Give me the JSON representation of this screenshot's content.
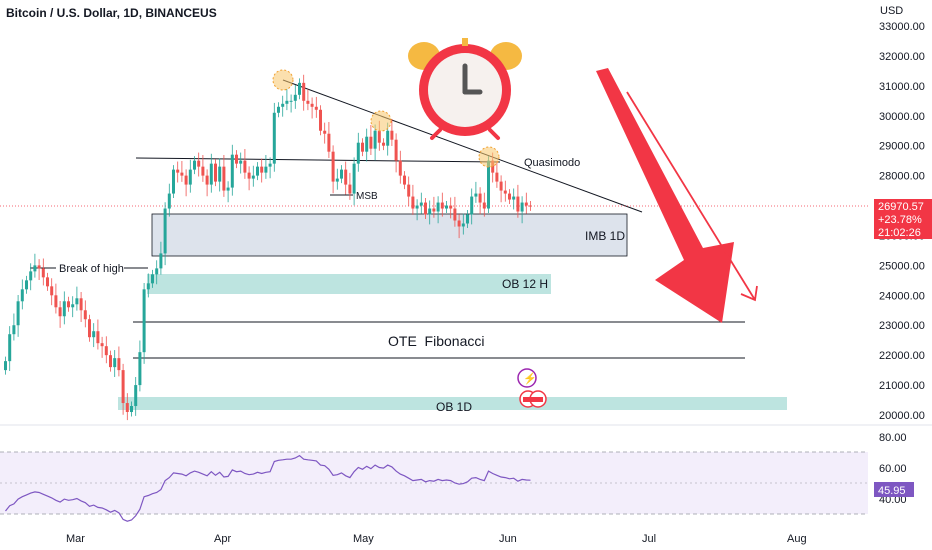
{
  "header": {
    "title": "Bitcoin / U.S. Dollar, 1D, BINANCEUS",
    "currency": "USD"
  },
  "price_axis": {
    "ticks": [
      "33000.00",
      "32000.00",
      "31000.00",
      "30000.00",
      "29000.00",
      "28000.00",
      "27000.00",
      "26000.00",
      "25000.00",
      "24000.00",
      "23000.00",
      "22000.00",
      "21000.00",
      "20000.00"
    ]
  },
  "rsi_axis": {
    "ticks": [
      "80.00",
      "60.00",
      "40.00"
    ],
    "current": "45.95"
  },
  "time_axis": {
    "ticks": [
      "Mar",
      "Apr",
      "May",
      "Jun",
      "Jul",
      "Aug"
    ]
  },
  "price_badge": {
    "price": "26970.57",
    "change": "+23.78%",
    "countdown": "21:02:26"
  },
  "annotations": {
    "break_of_high": "Break of high",
    "msb": "MSB",
    "quasimodo": "Quasimodo",
    "imb": "IMB 1D",
    "ob12": "OB 12 H",
    "ote": "OTE  Fibonacci",
    "ob1d": "OB 1D"
  },
  "colors": {
    "up": "#26a69a",
    "down": "#ef5350",
    "arrow": "#f23645",
    "rsi_line": "#7e57c2",
    "rsi_band": "#f3eefb",
    "ob_zone": "#b2dfdb",
    "imb_zone": "#dde3ec",
    "price_line": "#f23645",
    "clock": "#f23645"
  },
  "chart_data": {
    "type": "candlestick",
    "title": "Bitcoin / U.S. Dollar, 1D, BINANCEUS",
    "x_ticks": [
      "Mar",
      "Apr",
      "May",
      "Jun",
      "Jul",
      "Aug"
    ],
    "ylim": [
      20000,
      33500
    ],
    "last_price": 26970.57,
    "daily_closes_approx": [
      21800,
      22700,
      23000,
      23800,
      24200,
      24500,
      24800,
      25000,
      24900,
      24600,
      24300,
      24000,
      23600,
      23300,
      23800,
      23600,
      23700,
      23900,
      23500,
      23200,
      22600,
      22800,
      22400,
      22300,
      22000,
      21600,
      21900,
      21500,
      20400,
      20100,
      20300,
      21000,
      22100,
      24200,
      24400,
      24700,
      24900,
      25400,
      26900,
      27400,
      28200,
      28100,
      28000,
      27700,
      28200,
      28500,
      28300,
      28000,
      27700,
      28400,
      27800,
      28300,
      27500,
      27600,
      28700,
      28400,
      28500,
      28100,
      27900,
      28000,
      28300,
      28100,
      28300,
      28400,
      30100,
      30300,
      30400,
      30500,
      30500,
      30700,
      31100,
      30500,
      30400,
      30300,
      30200,
      29500,
      29400,
      28800,
      27800,
      27900,
      28200,
      27700,
      27400,
      28400,
      29100,
      28800,
      29300,
      28900,
      29500,
      29100,
      29000,
      29500,
      29200,
      28500,
      28000,
      27700,
      27300,
      26900,
      27000,
      27100,
      26700,
      26900,
      26800,
      27100,
      26900,
      27000,
      26900,
      26500,
      26300,
      26400,
      26700,
      27300,
      27400,
      27100,
      26900,
      28500,
      28100,
      27800,
      27500,
      27400,
      27200,
      27300,
      26800,
      27100,
      27000,
      26970.57
    ],
    "rsi": {
      "levels": [
        70,
        50,
        30
      ],
      "current": 45.95
    },
    "annotations": [
      "Break of high",
      "MSB",
      "Quasimodo",
      "IMB 1D",
      "OB 12 H",
      "OTE  Fibonacci",
      "OB 1D"
    ]
  }
}
